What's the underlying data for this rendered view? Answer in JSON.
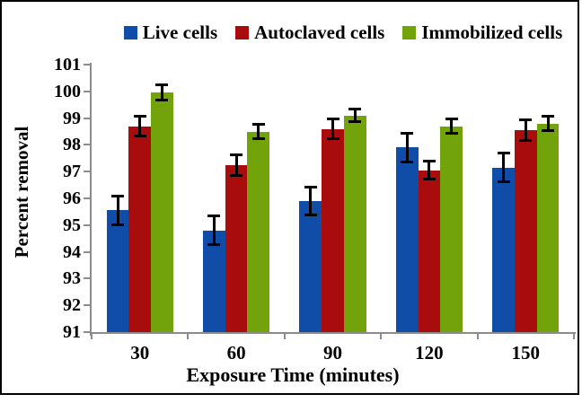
{
  "chart_data": {
    "type": "bar",
    "title": "",
    "xlabel": "Exposure Time (minutes)",
    "ylabel": "Percent removal",
    "categories": [
      "30",
      "60",
      "90",
      "120",
      "150"
    ],
    "series": [
      {
        "name": "Live cells",
        "color": "#104DA9",
        "values": [
          95.55,
          94.8,
          95.9,
          97.9,
          97.15
        ],
        "errors": [
          0.55,
          0.55,
          0.55,
          0.55,
          0.55
        ]
      },
      {
        "name": "Autoclaved cells",
        "color": "#A80C0C",
        "values": [
          98.7,
          97.25,
          98.6,
          97.05,
          98.55
        ],
        "errors": [
          0.38,
          0.4,
          0.38,
          0.35,
          0.4
        ]
      },
      {
        "name": "Immobilized cells",
        "color": "#72A30B",
        "values": [
          99.95,
          98.5,
          99.1,
          98.7,
          98.8
        ],
        "errors": [
          0.3,
          0.27,
          0.25,
          0.3,
          0.28
        ]
      }
    ],
    "ylim": [
      91,
      101
    ],
    "ytick_step": 1,
    "yticks": [
      "91",
      "92",
      "93",
      "94",
      "95",
      "96",
      "97",
      "98",
      "99",
      "100",
      "101"
    ],
    "grid": false,
    "legend_position": "top",
    "error_bars": true,
    "axis_color": "#8c8c8c",
    "text_color": "#000000",
    "error_bar_color": "#000000"
  }
}
